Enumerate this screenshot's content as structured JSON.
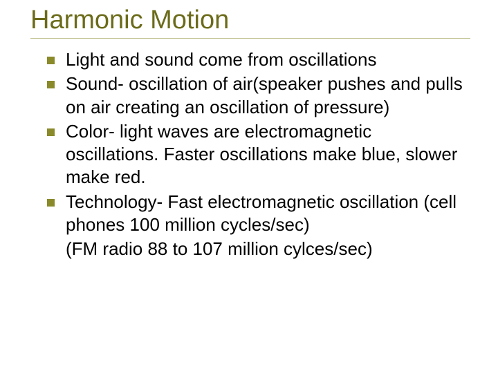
{
  "title": "Harmonic Motion",
  "title_color": "#6b6b1a",
  "bullet_color": "#8a8a2a",
  "text_color": "#000000",
  "background_color": "#ffffff",
  "title_fontsize": 38,
  "body_fontsize": 26,
  "items": [
    {
      "text": "Light and sound come from oscillations"
    },
    {
      "text": "Sound- oscillation of air(speaker pushes and pulls on air creating an oscillation of pressure)"
    },
    {
      "text": "Color- light waves are electromagnetic oscillations.  Faster oscillations make blue, slower make red."
    },
    {
      "text": "Technology- Fast electromagnetic oscillation (cell phones 100 million cycles/sec)"
    }
  ],
  "continuation": "(FM radio 88 to 107 million cylces/sec)"
}
